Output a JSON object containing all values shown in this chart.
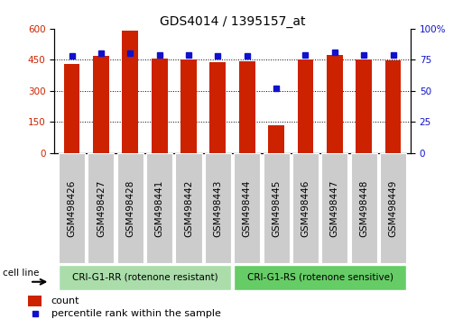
{
  "title": "GDS4014 / 1395157_at",
  "samples": [
    "GSM498426",
    "GSM498427",
    "GSM498428",
    "GSM498441",
    "GSM498442",
    "GSM498443",
    "GSM498444",
    "GSM498445",
    "GSM498446",
    "GSM498447",
    "GSM498448",
    "GSM498449"
  ],
  "counts": [
    430,
    470,
    590,
    455,
    450,
    437,
    443,
    135,
    450,
    475,
    453,
    447
  ],
  "percentile_ranks": [
    78,
    80,
    80,
    79,
    79,
    78,
    78,
    52,
    79,
    81,
    79,
    79
  ],
  "bar_color": "#cc2200",
  "dot_color": "#1111cc",
  "ylim_left": [
    0,
    600
  ],
  "ylim_right": [
    0,
    100
  ],
  "yticks_left": [
    0,
    150,
    300,
    450,
    600
  ],
  "ytick_labels_left": [
    "0",
    "150",
    "300",
    "450",
    "600"
  ],
  "yticks_right": [
    0,
    25,
    50,
    75,
    100
  ],
  "ytick_labels_right": [
    "0",
    "25",
    "50",
    "75",
    "100%"
  ],
  "grid_values": [
    150,
    300,
    450
  ],
  "group1_label": "CRI-G1-RR (rotenone resistant)",
  "group2_label": "CRI-G1-RS (rotenone sensitive)",
  "group1_count": 6,
  "group2_count": 6,
  "group1_color": "#aaddaa",
  "group2_color": "#66cc66",
  "cell_line_label": "cell line",
  "legend_count_label": "count",
  "legend_pct_label": "percentile rank within the sample",
  "bar_width": 0.55,
  "tick_area_color": "#cccccc",
  "title_fontsize": 10,
  "tick_fontsize": 7.5,
  "legend_fontsize": 8
}
